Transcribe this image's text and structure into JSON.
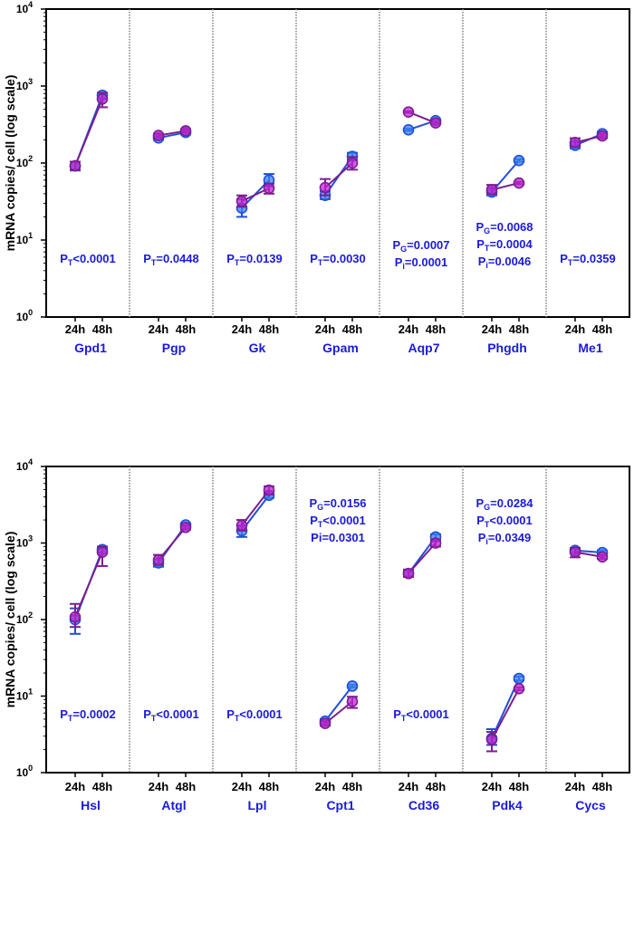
{
  "chart_data": [
    {
      "type": "line",
      "scale": "log",
      "ylabel": "mRNA copies/ cell (log scale)",
      "ylim": [
        1,
        10000
      ],
      "yticks": [
        {
          "base": "10",
          "exp": "0",
          "value": 1
        },
        {
          "base": "10",
          "exp": "1",
          "value": 10
        },
        {
          "base": "10",
          "exp": "2",
          "value": 100
        },
        {
          "base": "10",
          "exp": "3",
          "value": 1000
        },
        {
          "base": "10",
          "exp": "4",
          "value": 10000
        }
      ],
      "x_categories": [
        "24h",
        "48h"
      ],
      "series_colors": {
        "blue": "#3b82f6",
        "purple": "#c026d3"
      },
      "panels": [
        {
          "gene": "Gpd1",
          "blue": {
            "values": [
              92,
              760
            ],
            "err": [
              [
                80,
                104
              ],
              [
                700,
                800
              ]
            ]
          },
          "purple": {
            "values": [
              92,
              680
            ],
            "err": [
              [
                82,
                104
              ],
              [
                530,
                820
              ]
            ]
          },
          "stats": [
            {
              "p": "P",
              "s": "T",
              "t": "<0.0001"
            }
          ]
        },
        {
          "gene": "Pgp",
          "time_color": "#1a1adb",
          "blue": {
            "values": [
              212,
              250
            ],
            "err": [
              [
                200,
                225
              ],
              [
                235,
                265
              ]
            ]
          },
          "purple": {
            "values": [
              228,
              262
            ],
            "err": [
              [
                215,
                240
              ],
              [
                250,
                275
              ]
            ]
          },
          "stats": [
            {
              "p": "P",
              "s": "T",
              "t": "=0.0448"
            }
          ]
        },
        {
          "gene": "Gk",
          "blue": {
            "values": [
              26,
              60
            ],
            "err": [
              [
                20,
                34
              ],
              [
                50,
                72
              ]
            ]
          },
          "purple": {
            "values": [
              32,
              47
            ],
            "err": [
              [
                27,
                38
              ],
              [
                40,
                54
              ]
            ]
          },
          "stats": [
            {
              "p": "P",
              "s": "T",
              "t": "=0.0139"
            }
          ]
        },
        {
          "gene": "Gpam",
          "blue": {
            "values": [
              38,
              122
            ],
            "err": [
              [
                34,
                43
              ],
              [
                110,
                136
              ]
            ]
          },
          "purple": {
            "values": [
              48,
              100
            ],
            "err": [
              [
                38,
                62
              ],
              [
                82,
                120
              ]
            ]
          },
          "stats": [
            {
              "p": "P",
              "s": "T",
              "t": "=0.0030"
            }
          ]
        },
        {
          "gene": "Aqp7",
          "blue": {
            "values": [
              270,
              355
            ],
            "err": [
              [
                262,
                278
              ],
              [
                345,
                365
              ]
            ]
          },
          "purple": {
            "values": [
              460,
              332
            ],
            "err": [
              [
                450,
                470
              ],
              [
                322,
                342
              ]
            ]
          },
          "stats": [
            {
              "p": "P",
              "s": "G",
              "t": "=0.0007"
            },
            {
              "p": "P",
              "s": "i",
              "t": "=0.0001"
            }
          ]
        },
        {
          "gene": "Phgdh",
          "blue": {
            "values": [
              42,
              108
            ],
            "err": [
              [
                38,
                46
              ],
              [
                104,
                112
              ]
            ]
          },
          "purple": {
            "values": [
              45,
              55
            ],
            "err": [
              [
                40,
                52
              ],
              [
                53,
                57
              ]
            ]
          },
          "stats": [
            {
              "p": "P",
              "s": "G",
              "t": "=0.0068"
            },
            {
              "p": "P",
              "s": "T",
              "t": "=0.0004"
            },
            {
              "p": "P",
              "s": "i",
              "t": "=0.0046"
            }
          ]
        },
        {
          "gene": "Me1",
          "blue": {
            "values": [
              170,
              240
            ],
            "err": [
              [
                155,
                185
              ],
              [
                225,
                255
              ]
            ]
          },
          "purple": {
            "values": [
              185,
              225
            ],
            "err": [
              [
                165,
                210
              ],
              [
                210,
                240
              ]
            ]
          },
          "stats": [
            {
              "p": "P",
              "s": "T",
              "t": "=0.0359"
            }
          ]
        }
      ]
    },
    {
      "type": "line",
      "scale": "log",
      "ylabel": "mRNA copies/ cell (log scale)",
      "ylim": [
        1,
        10000
      ],
      "yticks": [
        {
          "base": "10",
          "exp": "0",
          "value": 1
        },
        {
          "base": "10",
          "exp": "1",
          "value": 10
        },
        {
          "base": "10",
          "exp": "2",
          "value": 100
        },
        {
          "base": "10",
          "exp": "3",
          "value": 1000
        },
        {
          "base": "10",
          "exp": "4",
          "value": 10000
        }
      ],
      "x_categories": [
        "24h",
        "48h"
      ],
      "series_colors": {
        "blue": "#3b82f6",
        "purple": "#c026d3"
      },
      "panels": [
        {
          "gene": "Hsl",
          "blue": {
            "values": [
              100,
              820
            ],
            "err": [
              [
                65,
                140
              ],
              [
                760,
                880
              ]
            ]
          },
          "purple": {
            "values": [
              108,
              760
            ],
            "err": [
              [
                80,
                160
              ],
              [
                500,
                900
              ]
            ]
          },
          "stats": [
            {
              "p": "P",
              "s": "T",
              "t": "=0.0002"
            }
          ]
        },
        {
          "gene": "Atgl",
          "blue": {
            "values": [
              550,
              1720
            ],
            "err": [
              [
                490,
                620
              ],
              [
                1620,
                1820
              ]
            ]
          },
          "purple": {
            "values": [
              600,
              1600
            ],
            "err": [
              [
                520,
                700
              ],
              [
                1500,
                1700
              ]
            ]
          },
          "stats": [
            {
              "p": "P",
              "s": "T",
              "t": "<0.0001"
            }
          ]
        },
        {
          "gene": "Lpl",
          "blue": {
            "values": [
              1450,
              4200
            ],
            "err": [
              [
                1200,
                1700
              ],
              [
                3900,
                4500
              ]
            ]
          },
          "purple": {
            "values": [
              1700,
              4900
            ],
            "err": [
              [
                1450,
                2000
              ],
              [
                4300,
                5500
              ]
            ]
          },
          "stats": [
            {
              "p": "P",
              "s": "T",
              "t": "<0.0001"
            }
          ]
        },
        {
          "gene": "Cpt1",
          "blue": {
            "values": [
              4.7,
              13.5
            ],
            "err": [
              [
                4.4,
                5.0
              ],
              [
                13,
                14
              ]
            ]
          },
          "purple": {
            "values": [
              4.4,
              8.5
            ],
            "err": [
              [
                4.1,
                4.7
              ],
              [
                7.0,
                9.8
              ]
            ]
          },
          "stats": [
            {
              "p": "P",
              "s": "G",
              "t": "=0.0156"
            },
            {
              "p": "P",
              "s": "T",
              "t": "<0.0001"
            },
            {
              "p": "Pi",
              "s": "",
              "t": "=0.0301"
            }
          ]
        },
        {
          "gene": "Cd36",
          "blue": {
            "values": [
              400,
              1200
            ],
            "err": [
              [
                370,
                430
              ],
              [
                1100,
                1300
              ]
            ]
          },
          "purple": {
            "values": [
              400,
              1000
            ],
            "err": [
              [
                360,
                450
              ],
              [
                900,
                1100
              ]
            ]
          },
          "stats": [
            {
              "p": "P",
              "s": "T",
              "t": "<0.0001"
            }
          ]
        },
        {
          "gene": "Pdk4",
          "blue": {
            "values": [
              2.8,
              17
            ],
            "err": [
              [
                2.3,
                3.7
              ],
              [
                16,
                18
              ]
            ]
          },
          "purple": {
            "values": [
              2.7,
              12.5
            ],
            "err": [
              [
                1.9,
                3.4
              ],
              [
                12,
                13
              ]
            ]
          },
          "stats": [
            {
              "p": "P",
              "s": "G",
              "t": "=0.0284"
            },
            {
              "p": "P",
              "s": "T",
              "t": "<0.0001"
            },
            {
              "p": "P",
              "s": "i",
              "t": "=0.0349"
            }
          ]
        },
        {
          "gene": "Cycs",
          "blue": {
            "values": [
              800,
              750
            ],
            "err": [
              [
                740,
                860
              ],
              [
                700,
                800
              ]
            ]
          },
          "purple": {
            "values": [
              760,
              660
            ],
            "err": [
              [
                650,
                860
              ],
              [
                620,
                700
              ]
            ]
          },
          "stats": []
        }
      ]
    }
  ]
}
